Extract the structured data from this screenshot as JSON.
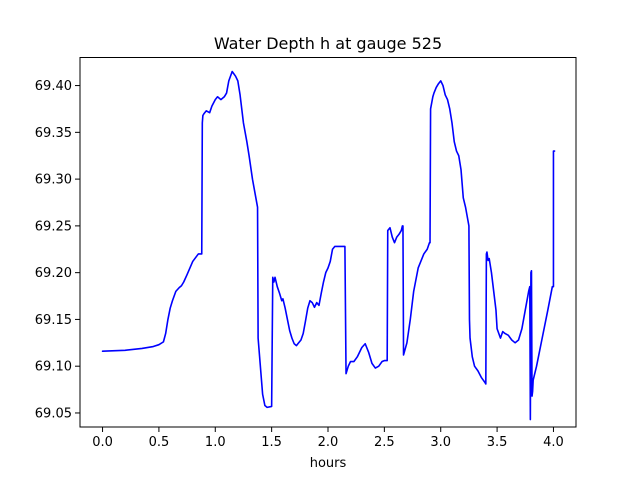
{
  "chart_data": {
    "type": "line",
    "title": "Water Depth h at gauge 525",
    "xlabel": "hours",
    "ylabel": "",
    "xlim": [
      -0.2,
      4.2
    ],
    "ylim": [
      69.035,
      69.43
    ],
    "xticks": [
      0.0,
      0.5,
      1.0,
      1.5,
      2.0,
      2.5,
      3.0,
      3.5,
      4.0
    ],
    "xtick_labels": [
      "0.0",
      "0.5",
      "1.0",
      "1.5",
      "2.0",
      "2.5",
      "3.0",
      "3.5",
      "4.0"
    ],
    "yticks": [
      69.05,
      69.1,
      69.15,
      69.2,
      69.25,
      69.3,
      69.35,
      69.4
    ],
    "ytick_labels": [
      "69.05",
      "69.10",
      "69.15",
      "69.20",
      "69.25",
      "69.30",
      "69.35",
      "69.40"
    ],
    "grid": false,
    "series": [
      {
        "color": "#0000ff",
        "x": [
          0.0,
          0.2,
          0.35,
          0.45,
          0.5,
          0.54,
          0.56,
          0.58,
          0.6,
          0.62,
          0.65,
          0.68,
          0.7,
          0.72,
          0.75,
          0.8,
          0.85,
          0.88,
          0.885,
          0.89,
          0.9,
          0.92,
          0.95,
          0.97,
          1.0,
          1.02,
          1.05,
          1.08,
          1.1,
          1.12,
          1.15,
          1.18,
          1.2,
          1.22,
          1.25,
          1.28,
          1.3,
          1.33,
          1.36,
          1.375,
          1.38,
          1.4,
          1.42,
          1.44,
          1.46,
          1.5,
          1.51,
          1.52,
          1.53,
          1.55,
          1.57,
          1.59,
          1.6,
          1.62,
          1.64,
          1.66,
          1.68,
          1.7,
          1.72,
          1.74,
          1.76,
          1.78,
          1.8,
          1.82,
          1.84,
          1.86,
          1.88,
          1.9,
          1.92,
          1.94,
          1.96,
          1.98,
          2.0,
          2.02,
          2.04,
          2.06,
          2.08,
          2.1,
          2.12,
          2.14,
          2.15,
          2.16,
          2.18,
          2.2,
          2.23,
          2.26,
          2.3,
          2.33,
          2.36,
          2.39,
          2.42,
          2.45,
          2.48,
          2.5,
          2.52,
          2.525,
          2.53,
          2.55,
          2.57,
          2.59,
          2.61,
          2.63,
          2.65,
          2.66,
          2.665,
          2.67,
          2.7,
          2.73,
          2.76,
          2.8,
          2.85,
          2.88,
          2.9,
          2.905,
          2.91,
          2.93,
          2.94,
          2.96,
          2.98,
          3.0,
          3.02,
          3.04,
          3.06,
          3.08,
          3.1,
          3.12,
          3.14,
          3.16,
          3.18,
          3.2,
          3.22,
          3.25,
          3.255,
          3.26,
          3.28,
          3.3,
          3.33,
          3.36,
          3.39,
          3.4,
          3.405,
          3.41,
          3.42,
          3.43,
          3.45,
          3.47,
          3.49,
          3.5,
          3.53,
          3.55,
          3.57,
          3.6,
          3.63,
          3.66,
          3.69,
          3.72,
          3.75,
          3.78,
          3.79,
          3.795,
          3.8,
          3.805,
          3.81,
          3.815,
          3.82,
          3.85,
          3.9,
          3.95,
          3.99,
          4.0,
          4.0,
          4.01
        ],
        "y": [
          69.116,
          69.117,
          69.119,
          69.121,
          69.123,
          69.126,
          69.135,
          69.15,
          69.162,
          69.17,
          69.18,
          69.184,
          69.186,
          69.19,
          69.198,
          69.212,
          69.22,
          69.22,
          69.36,
          69.368,
          69.37,
          69.373,
          69.371,
          69.378,
          69.385,
          69.388,
          69.385,
          69.388,
          69.392,
          69.405,
          69.415,
          69.41,
          69.405,
          69.39,
          69.36,
          69.34,
          69.325,
          69.3,
          69.28,
          69.27,
          69.13,
          69.1,
          69.07,
          69.058,
          69.056,
          69.057,
          69.195,
          69.19,
          69.195,
          69.185,
          69.178,
          69.17,
          69.172,
          69.162,
          69.15,
          69.138,
          69.13,
          69.124,
          69.122,
          69.125,
          69.128,
          69.135,
          69.148,
          69.162,
          69.17,
          69.168,
          69.163,
          69.168,
          69.165,
          69.178,
          69.19,
          69.2,
          69.205,
          69.212,
          69.225,
          69.228,
          69.228,
          69.228,
          69.228,
          69.228,
          69.228,
          69.092,
          69.1,
          69.105,
          69.105,
          69.11,
          69.12,
          69.124,
          69.115,
          69.103,
          69.098,
          69.1,
          69.105,
          69.106,
          69.106,
          69.106,
          69.245,
          69.248,
          69.238,
          69.232,
          69.238,
          69.241,
          69.245,
          69.25,
          69.25,
          69.112,
          69.125,
          69.15,
          69.18,
          69.205,
          69.22,
          69.225,
          69.232,
          69.232,
          69.375,
          69.388,
          69.392,
          69.398,
          69.402,
          69.405,
          69.4,
          69.39,
          69.385,
          69.375,
          69.36,
          69.34,
          69.33,
          69.325,
          69.31,
          69.28,
          69.27,
          69.25,
          69.15,
          69.13,
          69.11,
          69.1,
          69.095,
          69.088,
          69.083,
          69.081,
          69.22,
          69.222,
          69.213,
          69.215,
          69.2,
          69.18,
          69.16,
          69.14,
          69.13,
          69.137,
          69.135,
          69.133,
          69.128,
          69.125,
          69.128,
          69.14,
          69.16,
          69.18,
          69.185,
          69.043,
          69.2,
          69.202,
          69.068,
          69.073,
          69.085,
          69.1,
          69.13,
          69.16,
          69.185,
          69.185,
          69.33,
          69.33
        ]
      }
    ]
  }
}
